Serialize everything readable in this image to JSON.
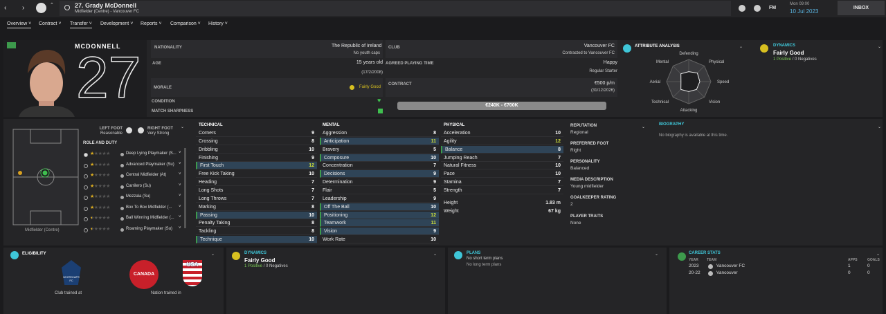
{
  "header": {
    "title": "27. Grady McDonnell",
    "subtitle": "Midfielder (Centre) - Vancouver FC",
    "fm": "FM",
    "time": "Mon 09:00",
    "date": "10 Jul 2023",
    "inbox": "INBOX"
  },
  "tabs": [
    "Overview",
    "Contract",
    "Transfer",
    "Development",
    "Reports",
    "Comparison",
    "History"
  ],
  "profile": {
    "surname": "MCDONNELL",
    "number": "27",
    "nationality": {
      "label": "NATIONALITY",
      "value": "The Republic of Ireland",
      "sub": "No youth caps"
    },
    "club": {
      "label": "CLUB",
      "value": "Vancouver FC",
      "sub": "Contracted to Vancouver FC"
    },
    "age": {
      "label": "AGE",
      "value": "15 years old",
      "sub": "(17/2/2008)"
    },
    "playing_time": {
      "label": "AGREED PLAYING TIME",
      "value": "Happy",
      "sub": "Regular Starter"
    },
    "morale": {
      "label": "MORALE",
      "value": "Fairly Good"
    },
    "contract": {
      "label": "CONTRACT",
      "value": "€500 p/m",
      "sub": "(31/12/2026)"
    },
    "condition": {
      "label": "CONDITION"
    },
    "sharpness": {
      "label": "MATCH SHARPNESS"
    },
    "value_range": "€240K - €700K"
  },
  "attribute_analysis": {
    "title": "ATTRIBUTE ANALYSIS",
    "axes": [
      "Defending",
      "Physical",
      "Speed",
      "Vision",
      "Attacking",
      "Technical",
      "Aerial",
      "Mental"
    ],
    "values": [
      9,
      11,
      10,
      10,
      9,
      10,
      7,
      10
    ],
    "rlim": [
      0,
      20
    ]
  },
  "dynamics": {
    "title": "DYNAMICS",
    "value": "Fairly Good",
    "positive": "1 Positive",
    "sep": "/",
    "negative": "0 Negatives"
  },
  "feet": {
    "left_label": "LEFT FOOT",
    "left": "Reasonable",
    "right_label": "RIGHT FOOT",
    "right": "Very Strong"
  },
  "roles": {
    "title": "ROLE AND DUTY",
    "position": "Midfielder (Centre)",
    "items": [
      {
        "name": "Deep Lying Playmaker (S...",
        "stars": 1
      },
      {
        "name": "Advanced Playmaker (Su)",
        "stars": 1
      },
      {
        "name": "Central Midfielder (At)",
        "stars": 1
      },
      {
        "name": "Carrilero (Su)",
        "stars": 1
      },
      {
        "name": "Mezzala (Su)",
        "stars": 1
      },
      {
        "name": "Box To Box Midfielder (...",
        "stars": 1
      },
      {
        "name": "Ball Winning Midfielder (...",
        "stars": 0.5
      },
      {
        "name": "Roaming Playmaker (Su)",
        "stars": 0.5
      }
    ]
  },
  "attributes": [
    {
      "title": "TECHNICAL",
      "rows": [
        [
          "Corners",
          9,
          false
        ],
        [
          "Crossing",
          8,
          false
        ],
        [
          "Dribbling",
          10,
          false
        ],
        [
          "Finishing",
          9,
          false
        ],
        [
          "First Touch",
          12,
          true
        ],
        [
          "Free Kick Taking",
          10,
          false
        ],
        [
          "Heading",
          7,
          false
        ],
        [
          "Long Shots",
          7,
          false
        ],
        [
          "Long Throws",
          7,
          false
        ],
        [
          "Marking",
          8,
          false
        ],
        [
          "Passing",
          10,
          true
        ],
        [
          "Penalty Taking",
          8,
          false
        ],
        [
          "Tackling",
          8,
          false
        ],
        [
          "Technique",
          10,
          true
        ]
      ]
    },
    {
      "title": "MENTAL",
      "rows": [
        [
          "Aggression",
          8,
          false
        ],
        [
          "Anticipation",
          11,
          true
        ],
        [
          "Bravery",
          5,
          false
        ],
        [
          "Composure",
          10,
          true
        ],
        [
          "Concentration",
          7,
          false
        ],
        [
          "Decisions",
          9,
          true
        ],
        [
          "Determination",
          9,
          false
        ],
        [
          "Flair",
          5,
          false
        ],
        [
          "Leadership",
          9,
          false
        ],
        [
          "Off The Ball",
          10,
          true
        ],
        [
          "Positioning",
          12,
          true
        ],
        [
          "Teamwork",
          11,
          true
        ],
        [
          "Vision",
          9,
          true
        ],
        [
          "Work Rate",
          10,
          false
        ]
      ]
    },
    {
      "title": "PHYSICAL",
      "rows": [
        [
          "Acceleration",
          10,
          false
        ],
        [
          "Agility",
          12,
          false
        ],
        [
          "Balance",
          8,
          true
        ],
        [
          "Jumping Reach",
          7,
          false
        ],
        [
          "Natural Fitness",
          10,
          false
        ],
        [
          "Pace",
          10,
          false
        ],
        [
          "Stamina",
          7,
          false
        ],
        [
          "Strength",
          7,
          false
        ]
      ],
      "extra": [
        [
          "Height",
          "1.83 m"
        ],
        [
          "Weight",
          "67 kg"
        ]
      ]
    }
  ],
  "info": [
    [
      "REPUTATION",
      "Regional"
    ],
    [
      "PREFERRED FOOT",
      "Right"
    ],
    [
      "PERSONALITY",
      "Balanced"
    ],
    [
      "MEDIA DESCRIPTION",
      "Young midfielder"
    ],
    [
      "GOALKEEPER RATING",
      "2"
    ],
    [
      "PLAYER TRAITS",
      "None"
    ]
  ],
  "biography": {
    "title": "BIOGRAPHY",
    "text": "No biography is available at this time."
  },
  "eligibility": {
    "title": "ELIGIBILITY",
    "club_caption": "Club trained at",
    "nation_caption": "Nation trained in",
    "club_badge": "WHITECAPS FC",
    "canada": "CANADA",
    "usa": "USA"
  },
  "plans": {
    "title": "PLANS",
    "short": "No short term plans",
    "long": "No long term plans"
  },
  "career": {
    "title": "CAREER STATS",
    "headers": [
      "YEAR",
      "TEAM",
      "APPS",
      "GOALS"
    ],
    "rows": [
      [
        "2023",
        "Vancouver FC",
        1,
        0
      ],
      [
        "20-22",
        "Vancouver",
        0,
        0
      ]
    ]
  }
}
